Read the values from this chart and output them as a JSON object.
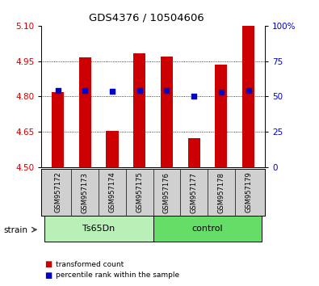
{
  "title": "GDS4376 / 10504606",
  "samples": [
    "GSM957172",
    "GSM957173",
    "GSM957174",
    "GSM957175",
    "GSM957176",
    "GSM957177",
    "GSM957178",
    "GSM957179"
  ],
  "red_values": [
    4.82,
    4.967,
    4.655,
    4.983,
    4.968,
    4.625,
    4.935,
    5.1
  ],
  "blue_values": [
    4.826,
    4.826,
    4.822,
    4.826,
    4.826,
    4.803,
    4.818,
    4.826
  ],
  "ymin": 4.5,
  "ymax": 5.1,
  "yticks": [
    4.5,
    4.65,
    4.8,
    4.95,
    5.1
  ],
  "y2ticks": [
    0,
    25,
    50,
    75,
    100
  ],
  "groups": [
    {
      "label": "Ts65Dn",
      "start": 0,
      "end": 4,
      "color": "#b8f0b8"
    },
    {
      "label": "control",
      "start": 4,
      "end": 8,
      "color": "#66dd66"
    }
  ],
  "bar_color": "#cc0000",
  "dot_color": "#0000cc",
  "bar_width": 0.45,
  "dot_size": 18,
  "legend_red": "transformed count",
  "legend_blue": "percentile rank within the sample",
  "left_tick_color": "#cc0000",
  "right_tick_color": "#0000cc",
  "strain_label": "strain",
  "sample_box_color": "#d0d0d0",
  "grid_color": "black",
  "grid_linestyle": ":"
}
